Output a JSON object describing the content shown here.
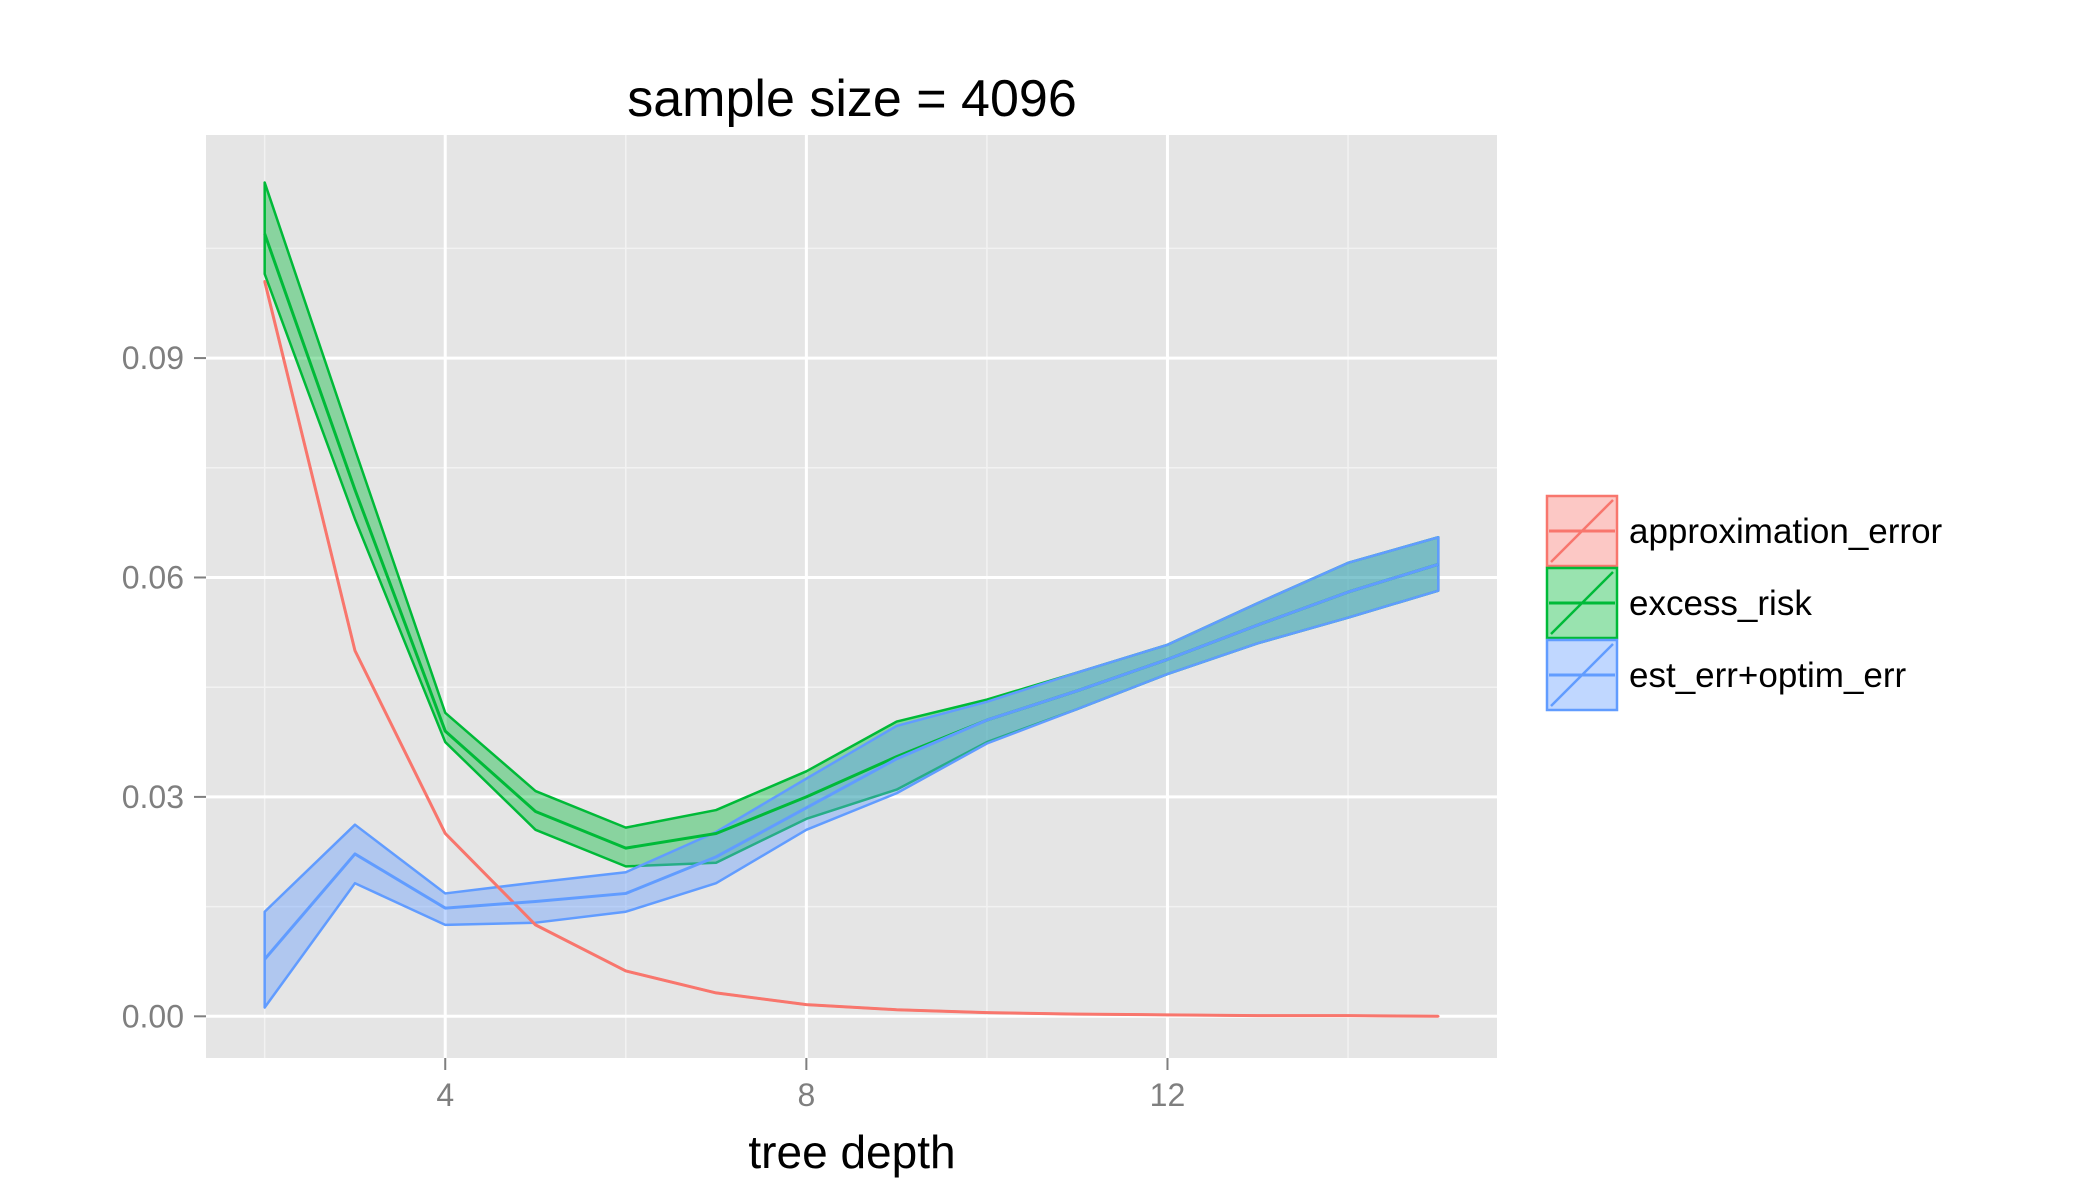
{
  "chart_data": {
    "type": "line",
    "title": "sample size = 4096",
    "xlabel": "tree depth",
    "ylabel": "",
    "xlim": [
      1.35,
      15.65
    ],
    "ylim": [
      -0.0057,
      0.1205
    ],
    "x_ticks": [
      4,
      8,
      12
    ],
    "x_tick_labels": [
      "4",
      "8",
      "12"
    ],
    "y_ticks": [
      0.0,
      0.03,
      0.06,
      0.09
    ],
    "y_tick_labels": [
      "0.00",
      "0.03",
      "0.06",
      "0.09"
    ],
    "grid": true,
    "legend_position": "right",
    "x": [
      2,
      3,
      4,
      5,
      6,
      7,
      8,
      9,
      10,
      11,
      12,
      13,
      14,
      15
    ],
    "series": [
      {
        "name": "approximation_error",
        "color": "#F8766D",
        "values": [
          0.1005,
          0.05,
          0.025,
          0.0125,
          0.0062,
          0.0032,
          0.0016,
          0.0009,
          0.0005,
          0.0003,
          0.0002,
          0.0001,
          0.0001,
          0.0
        ],
        "lower": [
          0.1005,
          0.05,
          0.025,
          0.0125,
          0.0062,
          0.0032,
          0.0016,
          0.0009,
          0.0005,
          0.0003,
          0.0002,
          0.0001,
          0.0001,
          0.0
        ],
        "upper": [
          0.1005,
          0.05,
          0.025,
          0.0125,
          0.0062,
          0.0032,
          0.0016,
          0.0009,
          0.0005,
          0.0003,
          0.0002,
          0.0001,
          0.0001,
          0.0
        ]
      },
      {
        "name": "excess_risk",
        "color": "#00BA38",
        "values": [
          0.107,
          0.072,
          0.039,
          0.028,
          0.023,
          0.025,
          0.03,
          0.0355,
          0.0405,
          0.0445,
          0.0488,
          0.0535,
          0.058,
          0.0618
        ],
        "lower": [
          0.1015,
          0.068,
          0.0375,
          0.0255,
          0.0205,
          0.021,
          0.027,
          0.031,
          0.0375,
          0.042,
          0.0468,
          0.051,
          0.0545,
          0.0582
        ],
        "upper": [
          0.114,
          0.0775,
          0.0415,
          0.0308,
          0.0258,
          0.0282,
          0.0335,
          0.0403,
          0.0433,
          0.047,
          0.0508,
          0.0565,
          0.062,
          0.0655
        ]
      },
      {
        "name": "est_err+optim_err",
        "color": "#619CFF",
        "values": [
          0.0078,
          0.0222,
          0.0148,
          0.0157,
          0.0168,
          0.0218,
          0.0285,
          0.0352,
          0.0405,
          0.0445,
          0.0488,
          0.0535,
          0.058,
          0.0618
        ],
        "lower": [
          0.0012,
          0.0182,
          0.0125,
          0.0128,
          0.0143,
          0.0182,
          0.0255,
          0.0305,
          0.0373,
          0.042,
          0.0468,
          0.051,
          0.0545,
          0.0582
        ],
        "upper": [
          0.0143,
          0.0262,
          0.0168,
          0.0183,
          0.0197,
          0.0252,
          0.0325,
          0.0397,
          0.043,
          0.047,
          0.0508,
          0.0565,
          0.062,
          0.0655
        ]
      }
    ]
  }
}
